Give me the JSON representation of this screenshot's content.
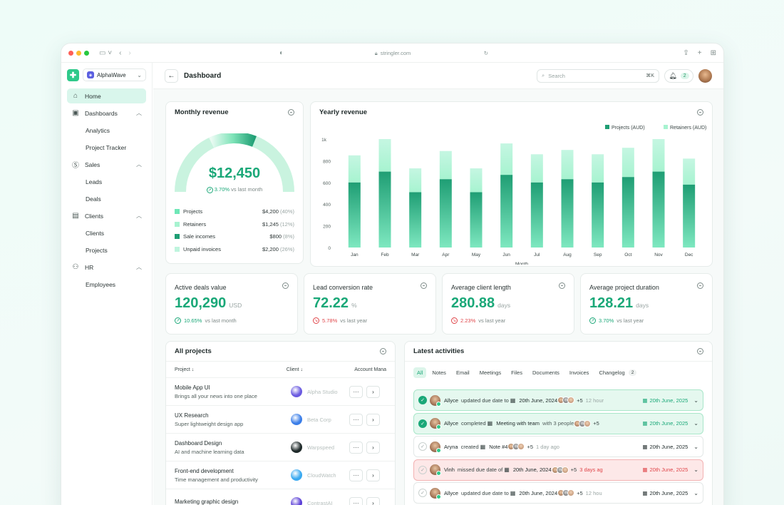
{
  "browser": {
    "url": "stringler.com"
  },
  "sidebar": {
    "workspace": "AlphaWave",
    "items": [
      {
        "label": "Home"
      },
      {
        "label": "Dashboards",
        "children": [
          "Analytics",
          "Project Tracker"
        ]
      },
      {
        "label": "Sales",
        "children": [
          "Leads",
          "Deals"
        ]
      },
      {
        "label": "Clients",
        "children": [
          "Clients",
          "Projects"
        ]
      },
      {
        "label": "HR",
        "children": [
          "Employees"
        ]
      }
    ]
  },
  "header": {
    "title": "Dashboard",
    "search_placeholder": "Search",
    "search_shortcut": "⌘K",
    "notifications": "2"
  },
  "monthly": {
    "title": "Monthly revenue",
    "value": "$12,450",
    "trend_pct": "3.70%",
    "trend_text": "vs last month",
    "gauge_fraction": 0.62,
    "legend": [
      {
        "label": "Projects",
        "value": "$4,200",
        "pct": "(40%)",
        "color": "#6ee7b7"
      },
      {
        "label": "Retainers",
        "value": "$1,245",
        "pct": "(12%)",
        "color": "#a7f3d0"
      },
      {
        "label": "Sale incomes",
        "value": "$800",
        "pct": "(8%)",
        "color": "#1f9e74"
      },
      {
        "label": "Unpaid invoices",
        "value": "$2,200",
        "pct": "(26%)",
        "color": "#bff5de"
      }
    ]
  },
  "yearly": {
    "title": "Yearly revenue"
  },
  "chart_data": {
    "type": "bar",
    "xlabel": "Month",
    "ylabel": "",
    "y_top_label": "1k",
    "ylim": [
      0,
      1000
    ],
    "yticks": [
      0,
      200,
      400,
      600,
      800
    ],
    "categories": [
      "Jan",
      "Feb",
      "Mar",
      "Apr",
      "May",
      "Jun",
      "Jul",
      "Aug",
      "Sep",
      "Oct",
      "Nov",
      "Dec"
    ],
    "stacked": true,
    "legend_position": "top-right",
    "series": [
      {
        "name": "Projects (AUD)",
        "color": "#1f9e74",
        "values": [
          600,
          700,
          510,
          630,
          510,
          670,
          600,
          630,
          600,
          650,
          700,
          580
        ]
      },
      {
        "name": "Retainers (AUD)",
        "color": "#a7f3d0",
        "values": [
          250,
          300,
          220,
          260,
          220,
          290,
          260,
          270,
          260,
          270,
          300,
          240
        ]
      }
    ]
  },
  "kpis": [
    {
      "label": "Active deals value",
      "value": "120,290",
      "unit": "USD",
      "trend": "10.65%",
      "dir": "up",
      "text": "vs last month"
    },
    {
      "label": "Lead conversion rate",
      "value": "72.22",
      "unit": "%",
      "trend": "5.78%",
      "dir": "down",
      "text": "vs last year"
    },
    {
      "label": "Average client length",
      "value": "280.88",
      "unit": "days",
      "trend": "2.23%",
      "dir": "down",
      "text": "vs last year"
    },
    {
      "label": "Average project duration",
      "value": "128.21",
      "unit": "days",
      "trend": "3.70%",
      "dir": "up",
      "text": "vs last year"
    }
  ],
  "projects": {
    "title": "All projects",
    "columns": [
      "Project",
      "Client",
      "Account Mana"
    ],
    "rows": [
      {
        "name": "Mobile App UI",
        "desc": "Brings all your news into one place",
        "client": "Alpha Studio",
        "logo": "#6b5be0"
      },
      {
        "name": "UX Research",
        "desc": "Super lightweight design app",
        "client": "Beta Corp",
        "logo": "#3b7ee8"
      },
      {
        "name": "Dashboard Design",
        "desc": "AI and machine learning data",
        "client": "Warpspeed",
        "logo": "#1f2a2a"
      },
      {
        "name": "Front-end development",
        "desc": "Time management and productivity",
        "client": "CloudWatch",
        "logo": "#3aa9f0"
      },
      {
        "name": "Marketing graphic design",
        "desc": "",
        "client": "ContrastAI",
        "logo": "#5b3fd6"
      }
    ]
  },
  "activities": {
    "title": "Latest activities",
    "tabs": [
      "All",
      "Notes",
      "Email",
      "Meetings",
      "Files",
      "Documents",
      "Invoices",
      "Changelog"
    ],
    "changelog_count": "2",
    "rows": [
      {
        "state": "g",
        "done": true,
        "name": "Allyce",
        "action": "updated due date to",
        "item": "20th June, 2024",
        "more": "+5",
        "time": "12 hour",
        "due": "20th June, 2025"
      },
      {
        "state": "g",
        "done": true,
        "name": "Allyce",
        "action": "completed",
        "item": "Meeting with team",
        "extra": "with 3 people",
        "more": "+5",
        "time": "",
        "due": "20th June, 2025"
      },
      {
        "state": "",
        "done": false,
        "name": "Aryna",
        "action": "created",
        "item": "Note #4",
        "more": "+5",
        "time": "1 day ago",
        "due": "20th June, 2025"
      },
      {
        "state": "r",
        "done": false,
        "name": "Vinh",
        "action": "missed due date of",
        "item": "20th June, 2024",
        "more": "+5",
        "time": "3 days ag",
        "due": "20th June, 2025"
      },
      {
        "state": "",
        "done": false,
        "name": "Allyce",
        "action": "updated due date to",
        "item": "20th June, 2024",
        "more": "+5",
        "time": "12 hou",
        "due": "20th June, 2025"
      }
    ]
  }
}
